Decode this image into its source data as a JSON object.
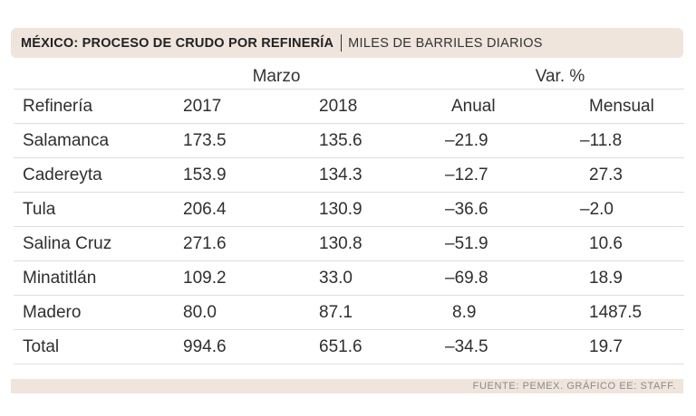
{
  "title": {
    "main": "MÉXICO: PROCESO DE CRUDO POR REFINERÍA",
    "subtitle": "MILES DE BARRILES DIARIOS"
  },
  "group_headers": {
    "marzo": "Marzo",
    "var": "Var. %"
  },
  "columns": [
    "Refinería",
    "2017",
    "2018",
    "Anual",
    "Mensual"
  ],
  "rows": [
    [
      "Salamanca",
      "173.5",
      "135.6",
      "–21.9",
      "–11.8"
    ],
    [
      "Cadereyta",
      "153.9",
      "134.3",
      "–12.7",
      "27.3"
    ],
    [
      "Tula",
      "206.4",
      "130.9",
      "–36.6",
      "–2.0"
    ],
    [
      "Salina Cruz",
      "271.6",
      "130.8",
      "–51.9",
      "10.6"
    ],
    [
      "Minatitlán",
      "109.2",
      "33.0",
      "–69.8",
      "18.9"
    ],
    [
      "Madero",
      "80.0",
      "87.1",
      "8.9",
      "1487.5"
    ],
    [
      "Total",
      "994.6",
      "651.6",
      "–34.5",
      "19.7"
    ]
  ],
  "footer": {
    "source": "FUENTE: PEMEX.  GRÁFICO EE: STAFF."
  },
  "colors": {
    "band": "#efe5dc",
    "rule": "#e3ddd7",
    "text": "#2f2f2f",
    "footer_text": "#8a8a8a"
  }
}
